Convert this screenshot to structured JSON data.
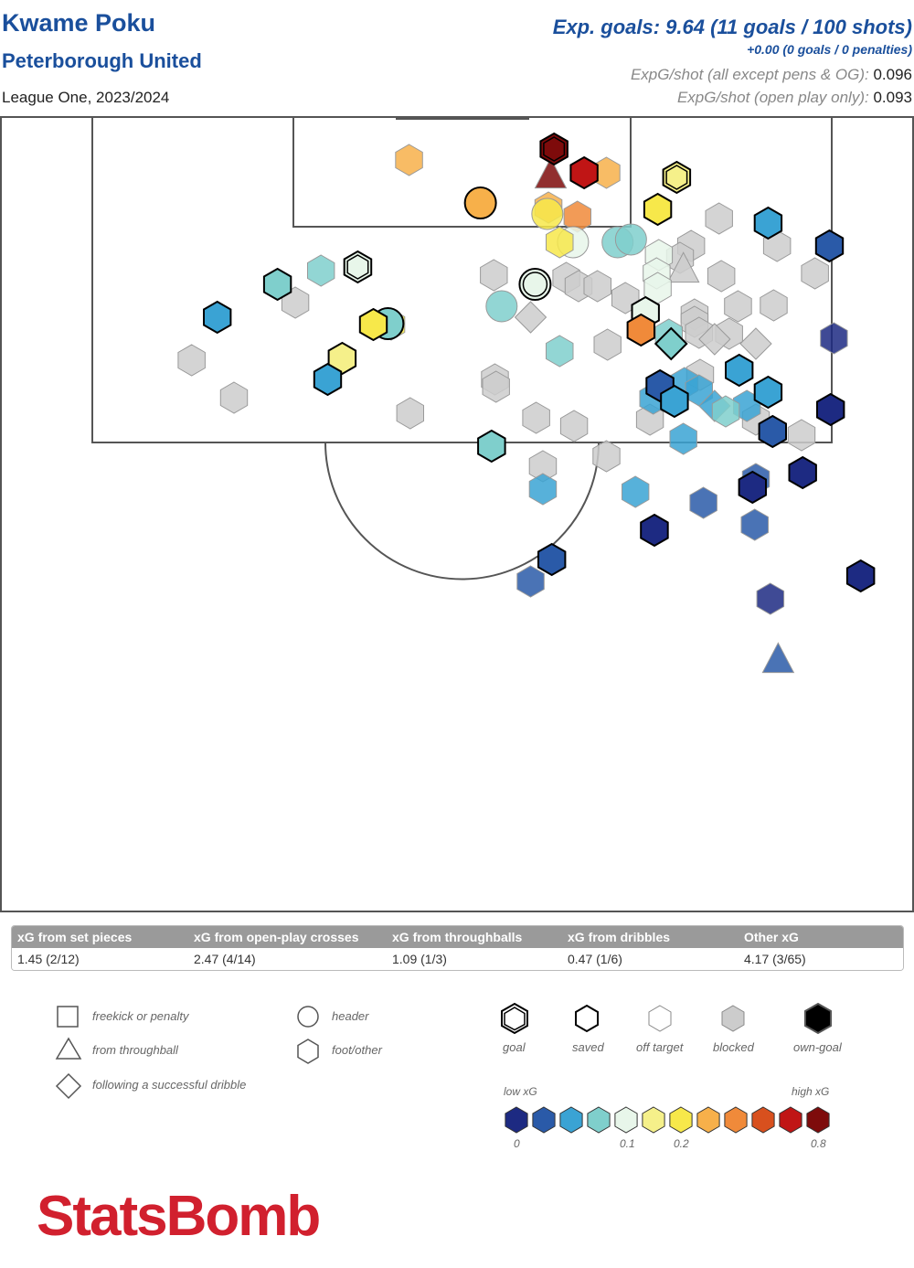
{
  "header": {
    "player": "Kwame Poku",
    "team": "Peterborough United",
    "season": "League One, 2023/2024",
    "xg_total": "Exp. goals: 9.64 (11 goals / 100 shots)",
    "xg_pens": "+0.00 (0 goals / 0 penalties)",
    "xg_per_shot_label": "ExpG/shot (all except pens & OG):",
    "xg_per_shot_value": "0.096",
    "xg_per_shot_open_label": "ExpG/shot (open play only):",
    "xg_per_shot_open_value": "0.093"
  },
  "summary": {
    "headers": [
      "xG from set pieces",
      "xG from open-play crosses",
      "xG from throughballs",
      "xG from dribbles",
      "Other xG"
    ],
    "values": [
      "1.45 (2/12)",
      "2.47 (4/14)",
      "1.09 (1/3)",
      "0.47 (1/6)",
      "4.17 (3/65)"
    ]
  },
  "legend": {
    "shape_freekick": "freekick or penalty",
    "shape_throughball": "from throughball",
    "shape_dribble": "following a successful dribble",
    "shape_header": "header",
    "shape_foot": "foot/other",
    "outcome_goal": "goal",
    "outcome_saved": "saved",
    "outcome_off_target": "off target",
    "outcome_blocked": "blocked",
    "outcome_own_goal": "own-goal",
    "low_xg": "low xG",
    "high_xg": "high xG",
    "tick_0": "0",
    "tick_01": "0.1",
    "tick_02": "0.2",
    "tick_08": "0.8",
    "scale_colors": [
      "#1d2a82",
      "#2a5aa8",
      "#3aa3d4",
      "#7fcfcc",
      "#e8f6ea",
      "#f5f08a",
      "#f7e84a",
      "#f7b04a",
      "#f08a3a",
      "#d8501e",
      "#c01515",
      "#7e0b0b"
    ]
  },
  "logo": "StatsBomb",
  "chart_data": {
    "type": "scatter",
    "title": "Kwame Poku",
    "coordinate_note": "x = distance from goal line (yards), y = lateral position from left touchline (yards, 0-80)",
    "colors": {
      "blocked": "#cccccc"
    },
    "shots": [
      {
        "x": 4.6,
        "y": 34.8,
        "xg": 0.22,
        "shape": "foot",
        "outcome": "off"
      },
      {
        "x": 3.4,
        "y": 47.8,
        "xg": 0.8,
        "shape": "foot",
        "outcome": "goal"
      },
      {
        "x": 6.0,
        "y": 50.5,
        "xg": 0.7,
        "shape": "foot",
        "outcome": "saved"
      },
      {
        "x": 6.0,
        "y": 52.5,
        "xg": 0.25,
        "shape": "foot",
        "outcome": "off"
      },
      {
        "x": 6.3,
        "y": 47.5,
        "xg": 0.8,
        "shape": "throughball",
        "outcome": "off"
      },
      {
        "x": 6.5,
        "y": 58.8,
        "xg": 0.15,
        "shape": "foot",
        "outcome": "goal"
      },
      {
        "x": 9.3,
        "y": 41.2,
        "xg": 0.24,
        "shape": "header",
        "outcome": "saved"
      },
      {
        "x": 9.8,
        "y": 47.3,
        "xg": 0.25,
        "shape": "foot",
        "outcome": "off"
      },
      {
        "x": 10.0,
        "y": 57.1,
        "xg": 0.17,
        "shape": "foot",
        "outcome": "saved"
      },
      {
        "x": 10.8,
        "y": 49.9,
        "xg": 0.3,
        "shape": "foot",
        "outcome": "off"
      },
      {
        "x": 10.5,
        "y": 47.2,
        "xg": 0.18,
        "shape": "header",
        "outcome": "off"
      },
      {
        "x": 11.0,
        "y": 62.6,
        "xg": 0.0,
        "shape": "foot",
        "outcome": "blocked"
      },
      {
        "x": 11.5,
        "y": 67.0,
        "xg": 0.03,
        "shape": "foot",
        "outcome": "saved"
      },
      {
        "x": 13.6,
        "y": 49.5,
        "xg": 0.1,
        "shape": "header",
        "outcome": "off"
      },
      {
        "x": 13.6,
        "y": 53.5,
        "xg": 0.06,
        "shape": "header",
        "outcome": "off"
      },
      {
        "x": 13.3,
        "y": 54.7,
        "xg": 0.07,
        "shape": "header",
        "outcome": "off"
      },
      {
        "x": 14.0,
        "y": 60.1,
        "xg": 0.0,
        "shape": "foot",
        "outcome": "blocked"
      },
      {
        "x": 14.0,
        "y": 67.8,
        "xg": 0.0,
        "shape": "foot",
        "outcome": "blocked"
      },
      {
        "x": 14.0,
        "y": 72.5,
        "xg": 0.02,
        "shape": "foot",
        "outcome": "saved"
      },
      {
        "x": 15.0,
        "y": 57.2,
        "xg": 0.09,
        "shape": "foot",
        "outcome": "off"
      },
      {
        "x": 15.3,
        "y": 59.1,
        "xg": 0.0,
        "shape": "foot",
        "outcome": "blocked"
      },
      {
        "x": 16.3,
        "y": 30.2,
        "xg": 0.08,
        "shape": "foot",
        "outcome": "goal"
      },
      {
        "x": 16.7,
        "y": 26.9,
        "xg": 0.07,
        "shape": "foot",
        "outcome": "off"
      },
      {
        "x": 16.6,
        "y": 59.4,
        "xg": 0.0,
        "shape": "throughball",
        "outcome": "blocked"
      },
      {
        "x": 17.0,
        "y": 57.0,
        "xg": 0.09,
        "shape": "foot",
        "outcome": "off"
      },
      {
        "x": 17.0,
        "y": 71.2,
        "xg": 0.0,
        "shape": "foot",
        "outcome": "blocked"
      },
      {
        "x": 17.2,
        "y": 42.4,
        "xg": 0.0,
        "shape": "foot",
        "outcome": "blocked"
      },
      {
        "x": 17.5,
        "y": 48.9,
        "xg": 0.0,
        "shape": "foot",
        "outcome": "blocked"
      },
      {
        "x": 17.3,
        "y": 62.8,
        "xg": 0.0,
        "shape": "foot",
        "outcome": "blocked"
      },
      {
        "x": 18.2,
        "y": 46.1,
        "xg": 0.08,
        "shape": "header",
        "outcome": "goal"
      },
      {
        "x": 18.4,
        "y": 50.0,
        "xg": 0.0,
        "shape": "foot",
        "outcome": "blocked"
      },
      {
        "x": 18.4,
        "y": 51.7,
        "xg": 0.0,
        "shape": "foot",
        "outcome": "blocked"
      },
      {
        "x": 18.2,
        "y": 23.0,
        "xg": 0.07,
        "shape": "foot",
        "outcome": "saved"
      },
      {
        "x": 18.6,
        "y": 57.1,
        "xg": 0.08,
        "shape": "foot",
        "outcome": "off"
      },
      {
        "x": 19.7,
        "y": 54.2,
        "xg": 0.0,
        "shape": "foot",
        "outcome": "blocked"
      },
      {
        "x": 20.2,
        "y": 24.6,
        "xg": 0.0,
        "shape": "foot",
        "outcome": "blocked"
      },
      {
        "x": 20.6,
        "y": 43.1,
        "xg": 0.05,
        "shape": "header",
        "outcome": "off"
      },
      {
        "x": 20.6,
        "y": 64.3,
        "xg": 0.0,
        "shape": "foot",
        "outcome": "blocked"
      },
      {
        "x": 20.5,
        "y": 67.5,
        "xg": 0.0,
        "shape": "foot",
        "outcome": "blocked"
      },
      {
        "x": 21.3,
        "y": 56.0,
        "xg": 0.1,
        "shape": "foot",
        "outcome": "saved"
      },
      {
        "x": 21.8,
        "y": 17.6,
        "xg": 0.04,
        "shape": "foot",
        "outcome": "saved"
      },
      {
        "x": 21.8,
        "y": 45.7,
        "xg": 0.0,
        "shape": "dribble",
        "outcome": "blocked"
      },
      {
        "x": 21.5,
        "y": 60.4,
        "xg": 0.0,
        "shape": "foot",
        "outcome": "blocked"
      },
      {
        "x": 22.5,
        "y": 32.9,
        "xg": 0.05,
        "shape": "header",
        "outcome": "saved"
      },
      {
        "x": 22.6,
        "y": 33.2,
        "xg": 0.2,
        "shape": "foot",
        "outcome": "off"
      },
      {
        "x": 22.6,
        "y": 31.6,
        "xg": 0.18,
        "shape": "foot",
        "outcome": "saved"
      },
      {
        "x": 22.3,
        "y": 60.4,
        "xg": 0.0,
        "shape": "foot",
        "outcome": "blocked"
      },
      {
        "x": 23.2,
        "y": 55.6,
        "xg": 0.26,
        "shape": "foot",
        "outcome": "saved"
      },
      {
        "x": 23.7,
        "y": 58.1,
        "xg": 0.05,
        "shape": "foot",
        "outcome": "off"
      },
      {
        "x": 23.5,
        "y": 60.8,
        "xg": 0.0,
        "shape": "foot",
        "outcome": "blocked"
      },
      {
        "x": 23.6,
        "y": 63.5,
        "xg": 0.0,
        "shape": "foot",
        "outcome": "blocked"
      },
      {
        "x": 24.2,
        "y": 62.2,
        "xg": 0.0,
        "shape": "dribble",
        "outcome": "blocked"
      },
      {
        "x": 24.8,
        "y": 52.6,
        "xg": 0.0,
        "shape": "foot",
        "outcome": "blocked"
      },
      {
        "x": 24.7,
        "y": 58.3,
        "xg": 0.06,
        "shape": "dribble",
        "outcome": "saved"
      },
      {
        "x": 24.7,
        "y": 65.9,
        "xg": 0.0,
        "shape": "dribble",
        "outcome": "blocked"
      },
      {
        "x": 25.5,
        "y": 48.3,
        "xg": 0.05,
        "shape": "foot",
        "outcome": "off"
      },
      {
        "x": 26.3,
        "y": 28.8,
        "xg": 0.16,
        "shape": "foot",
        "outcome": "saved"
      },
      {
        "x": 26.5,
        "y": 15.3,
        "xg": 0.0,
        "shape": "foot",
        "outcome": "blocked"
      },
      {
        "x": 27.6,
        "y": 64.4,
        "xg": 0.03,
        "shape": "foot",
        "outcome": "saved"
      },
      {
        "x": 28.1,
        "y": 60.9,
        "xg": 0.0,
        "shape": "foot",
        "outcome": "blocked"
      },
      {
        "x": 28.6,
        "y": 27.5,
        "xg": 0.04,
        "shape": "foot",
        "outcome": "saved"
      },
      {
        "x": 28.6,
        "y": 42.5,
        "xg": 0.0,
        "shape": "foot",
        "outcome": "blocked"
      },
      {
        "x": 29.0,
        "y": 59.5,
        "xg": 0.03,
        "shape": "foot",
        "outcome": "off"
      },
      {
        "x": 29.4,
        "y": 42.6,
        "xg": 0.0,
        "shape": "foot",
        "outcome": "blocked"
      },
      {
        "x": 29.3,
        "y": 57.3,
        "xg": 0.02,
        "shape": "foot",
        "outcome": "saved"
      },
      {
        "x": 29.8,
        "y": 60.8,
        "xg": 0.03,
        "shape": "foot",
        "outcome": "off"
      },
      {
        "x": 30.0,
        "y": 67.0,
        "xg": 0.03,
        "shape": "foot",
        "outcome": "saved"
      },
      {
        "x": 30.6,
        "y": 19.1,
        "xg": 0.0,
        "shape": "foot",
        "outcome": "blocked"
      },
      {
        "x": 30.7,
        "y": 56.7,
        "xg": 0.03,
        "shape": "foot",
        "outcome": "off"
      },
      {
        "x": 31.0,
        "y": 58.6,
        "xg": 0.04,
        "shape": "foot",
        "outcome": "saved"
      },
      {
        "x": 31.5,
        "y": 62.2,
        "xg": 0.04,
        "shape": "dribble",
        "outcome": "off"
      },
      {
        "x": 31.5,
        "y": 65.1,
        "xg": 0.04,
        "shape": "foot",
        "outcome": "off"
      },
      {
        "x": 31.9,
        "y": 72.6,
        "xg": 0.01,
        "shape": "foot",
        "outcome": "saved"
      },
      {
        "x": 32.3,
        "y": 34.9,
        "xg": 0.0,
        "shape": "foot",
        "outcome": "blocked"
      },
      {
        "x": 32.8,
        "y": 46.2,
        "xg": 0.0,
        "shape": "foot",
        "outcome": "blocked"
      },
      {
        "x": 33.0,
        "y": 56.4,
        "xg": 0.0,
        "shape": "foot",
        "outcome": "blocked"
      },
      {
        "x": 33.0,
        "y": 65.9,
        "xg": 0.0,
        "shape": "foot",
        "outcome": "blocked"
      },
      {
        "x": 33.7,
        "y": 49.6,
        "xg": 0.0,
        "shape": "foot",
        "outcome": "blocked"
      },
      {
        "x": 34.3,
        "y": 67.4,
        "xg": 0.02,
        "shape": "foot",
        "outcome": "saved"
      },
      {
        "x": 34.7,
        "y": 70.0,
        "xg": 0.0,
        "shape": "foot",
        "outcome": "blocked"
      },
      {
        "x": 35.1,
        "y": 59.4,
        "xg": 0.04,
        "shape": "foot",
        "outcome": "off"
      },
      {
        "x": 35.9,
        "y": 42.2,
        "xg": 0.05,
        "shape": "foot",
        "outcome": "saved"
      },
      {
        "x": 37.0,
        "y": 52.5,
        "xg": 0.0,
        "shape": "foot",
        "outcome": "blocked"
      },
      {
        "x": 38.1,
        "y": 46.8,
        "xg": 0.0,
        "shape": "foot",
        "outcome": "blocked"
      },
      {
        "x": 38.8,
        "y": 70.1,
        "xg": 0.01,
        "shape": "foot",
        "outcome": "saved"
      },
      {
        "x": 39.5,
        "y": 65.9,
        "xg": 0.02,
        "shape": "foot",
        "outcome": "off"
      },
      {
        "x": 40.4,
        "y": 65.6,
        "xg": 0.01,
        "shape": "foot",
        "outcome": "saved"
      },
      {
        "x": 40.6,
        "y": 46.8,
        "xg": 0.03,
        "shape": "foot",
        "outcome": "off"
      },
      {
        "x": 40.9,
        "y": 55.1,
        "xg": 0.03,
        "shape": "foot",
        "outcome": "off"
      },
      {
        "x": 42.1,
        "y": 61.2,
        "xg": 0.02,
        "shape": "foot",
        "outcome": "off"
      },
      {
        "x": 45.1,
        "y": 56.8,
        "xg": 0.01,
        "shape": "foot",
        "outcome": "saved"
      },
      {
        "x": 48.3,
        "y": 47.6,
        "xg": 0.02,
        "shape": "foot",
        "outcome": "saved"
      },
      {
        "x": 50.1,
        "y": 75.3,
        "xg": 0.01,
        "shape": "foot",
        "outcome": "saved"
      },
      {
        "x": 50.7,
        "y": 45.7,
        "xg": 0.02,
        "shape": "foot",
        "outcome": "off"
      },
      {
        "x": 52.6,
        "y": 67.2,
        "xg": 0.01,
        "shape": "foot",
        "outcome": "off"
      },
      {
        "x": 59.3,
        "y": 67.9,
        "xg": 0.02,
        "shape": "throughball",
        "outcome": "off"
      },
      {
        "x": 13.6,
        "y": 48.3,
        "xg": 0.18,
        "shape": "foot",
        "outcome": "off"
      },
      {
        "x": 32.1,
        "y": 63.2,
        "xg": 0.05,
        "shape": "foot",
        "outcome": "off"
      },
      {
        "x": 24.1,
        "y": 72.9,
        "xg": 0.01,
        "shape": "foot",
        "outcome": "off"
      },
      {
        "x": 44.5,
        "y": 65.8,
        "xg": 0.02,
        "shape": "foot",
        "outcome": "off"
      }
    ]
  }
}
